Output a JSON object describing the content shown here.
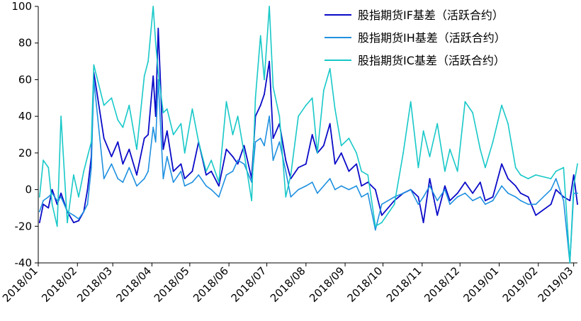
{
  "chart_data": {
    "type": "line",
    "title": "",
    "xlabel": "",
    "ylabel": "",
    "ylim": [
      -40,
      100
    ],
    "yticks": [
      -40,
      -20,
      0,
      20,
      40,
      60,
      80,
      100
    ],
    "xlim": [
      "2018-01-01",
      "2019-03-04"
    ],
    "xticks": [
      {
        "date": "2018-01-01",
        "label": "2018/01"
      },
      {
        "date": "2018-02-01",
        "label": "2018/02"
      },
      {
        "date": "2018-03-01",
        "label": "2018/03"
      },
      {
        "date": "2018-04-01",
        "label": "2018/04"
      },
      {
        "date": "2018-05-01",
        "label": "2018/05"
      },
      {
        "date": "2018-06-01",
        "label": "2018/06"
      },
      {
        "date": "2018-07-01",
        "label": "2018/07"
      },
      {
        "date": "2018-08-01",
        "label": "2018/08"
      },
      {
        "date": "2018-09-01",
        "label": "2018/09"
      },
      {
        "date": "2018-10-01",
        "label": "2018/10"
      },
      {
        "date": "2018-11-01",
        "label": "2018/11"
      },
      {
        "date": "2018-12-01",
        "label": "2018/12"
      },
      {
        "date": "2019-01-01",
        "label": "2019/01"
      },
      {
        "date": "2019-02-01",
        "label": "2019/02"
      },
      {
        "date": "2019-03-01",
        "label": "2019/03"
      }
    ],
    "grid": false,
    "legend_position": "top-right",
    "series": [
      {
        "name": "股指期货IF基差（活跃合约）",
        "color": "#0a0ac8",
        "points": [
          [
            "2018-01-02",
            -18
          ],
          [
            "2018-01-05",
            -8
          ],
          [
            "2018-01-09",
            -10
          ],
          [
            "2018-01-12",
            0
          ],
          [
            "2018-01-16",
            -8
          ],
          [
            "2018-01-19",
            -2
          ],
          [
            "2018-01-24",
            -12
          ],
          [
            "2018-01-29",
            -18
          ],
          [
            "2018-02-02",
            -17
          ],
          [
            "2018-02-06",
            -12
          ],
          [
            "2018-02-09",
            0
          ],
          [
            "2018-02-12",
            18
          ],
          [
            "2018-02-14",
            64
          ],
          [
            "2018-02-22",
            28
          ],
          [
            "2018-02-28",
            18
          ],
          [
            "2018-03-05",
            26
          ],
          [
            "2018-03-09",
            14
          ],
          [
            "2018-03-14",
            22
          ],
          [
            "2018-03-20",
            8
          ],
          [
            "2018-03-26",
            28
          ],
          [
            "2018-03-29",
            30
          ],
          [
            "2018-04-02",
            62
          ],
          [
            "2018-04-04",
            40
          ],
          [
            "2018-04-06",
            88
          ],
          [
            "2018-04-10",
            22
          ],
          [
            "2018-04-13",
            32
          ],
          [
            "2018-04-18",
            10
          ],
          [
            "2018-04-24",
            14
          ],
          [
            "2018-04-27",
            6
          ],
          [
            "2018-05-03",
            10
          ],
          [
            "2018-05-08",
            26
          ],
          [
            "2018-05-14",
            8
          ],
          [
            "2018-05-18",
            10
          ],
          [
            "2018-05-24",
            2
          ],
          [
            "2018-05-30",
            22
          ],
          [
            "2018-06-04",
            18
          ],
          [
            "2018-06-08",
            14
          ],
          [
            "2018-06-13",
            24
          ],
          [
            "2018-06-19",
            6
          ],
          [
            "2018-06-22",
            40
          ],
          [
            "2018-06-26",
            46
          ],
          [
            "2018-06-29",
            52
          ],
          [
            "2018-07-03",
            70
          ],
          [
            "2018-07-06",
            28
          ],
          [
            "2018-07-11",
            36
          ],
          [
            "2018-07-16",
            16
          ],
          [
            "2018-07-20",
            6
          ],
          [
            "2018-07-26",
            12
          ],
          [
            "2018-08-01",
            14
          ],
          [
            "2018-08-06",
            30
          ],
          [
            "2018-08-10",
            20
          ],
          [
            "2018-08-15",
            24
          ],
          [
            "2018-08-20",
            36
          ],
          [
            "2018-08-24",
            14
          ],
          [
            "2018-08-29",
            20
          ],
          [
            "2018-09-04",
            10
          ],
          [
            "2018-09-10",
            14
          ],
          [
            "2018-09-14",
            2
          ],
          [
            "2018-09-19",
            4
          ],
          [
            "2018-09-25",
            0
          ],
          [
            "2018-09-30",
            -14
          ],
          [
            "2018-10-10",
            -6
          ],
          [
            "2018-10-17",
            -2
          ],
          [
            "2018-10-23",
            0
          ],
          [
            "2018-10-29",
            -4
          ],
          [
            "2018-11-02",
            -18
          ],
          [
            "2018-11-07",
            6
          ],
          [
            "2018-11-13",
            -14
          ],
          [
            "2018-11-19",
            2
          ],
          [
            "2018-11-23",
            -6
          ],
          [
            "2018-11-29",
            -2
          ],
          [
            "2018-12-05",
            4
          ],
          [
            "2018-12-11",
            -2
          ],
          [
            "2018-12-17",
            4
          ],
          [
            "2018-12-21",
            -6
          ],
          [
            "2018-12-27",
            -4
          ],
          [
            "2019-01-03",
            14
          ],
          [
            "2019-01-08",
            6
          ],
          [
            "2019-01-14",
            2
          ],
          [
            "2019-01-18",
            -2
          ],
          [
            "2019-01-24",
            -4
          ],
          [
            "2019-01-30",
            -14
          ],
          [
            "2019-02-11",
            -8
          ],
          [
            "2019-02-15",
            0
          ],
          [
            "2019-02-21",
            -4
          ],
          [
            "2019-02-26",
            -6
          ],
          [
            "2019-03-01",
            8
          ],
          [
            "2019-03-04",
            -8
          ]
        ]
      },
      {
        "name": "股指期货IH基差（活跃合约）",
        "color": "#1e90e0",
        "points": [
          [
            "2018-01-02",
            -12
          ],
          [
            "2018-01-05",
            -6
          ],
          [
            "2018-01-09",
            -4
          ],
          [
            "2018-01-12",
            -2
          ],
          [
            "2018-01-16",
            -6
          ],
          [
            "2018-01-19",
            -4
          ],
          [
            "2018-01-24",
            -12
          ],
          [
            "2018-01-29",
            -14
          ],
          [
            "2018-02-02",
            -16
          ],
          [
            "2018-02-06",
            -12
          ],
          [
            "2018-02-09",
            -8
          ],
          [
            "2018-02-12",
            12
          ],
          [
            "2018-02-14",
            60
          ],
          [
            "2018-02-22",
            6
          ],
          [
            "2018-02-28",
            14
          ],
          [
            "2018-03-05",
            6
          ],
          [
            "2018-03-09",
            4
          ],
          [
            "2018-03-14",
            12
          ],
          [
            "2018-03-20",
            2
          ],
          [
            "2018-03-26",
            6
          ],
          [
            "2018-03-29",
            10
          ],
          [
            "2018-04-02",
            34
          ],
          [
            "2018-04-04",
            26
          ],
          [
            "2018-04-06",
            60
          ],
          [
            "2018-04-10",
            6
          ],
          [
            "2018-04-13",
            18
          ],
          [
            "2018-04-18",
            4
          ],
          [
            "2018-04-24",
            10
          ],
          [
            "2018-04-27",
            2
          ],
          [
            "2018-05-03",
            4
          ],
          [
            "2018-05-08",
            8
          ],
          [
            "2018-05-14",
            2
          ],
          [
            "2018-05-18",
            0
          ],
          [
            "2018-05-24",
            -4
          ],
          [
            "2018-05-30",
            8
          ],
          [
            "2018-06-04",
            10
          ],
          [
            "2018-06-08",
            16
          ],
          [
            "2018-06-13",
            14
          ],
          [
            "2018-06-19",
            4
          ],
          [
            "2018-06-22",
            26
          ],
          [
            "2018-06-26",
            28
          ],
          [
            "2018-06-29",
            24
          ],
          [
            "2018-07-03",
            40
          ],
          [
            "2018-07-06",
            16
          ],
          [
            "2018-07-11",
            26
          ],
          [
            "2018-07-16",
            10
          ],
          [
            "2018-07-20",
            -4
          ],
          [
            "2018-07-26",
            0
          ],
          [
            "2018-08-01",
            2
          ],
          [
            "2018-08-06",
            4
          ],
          [
            "2018-08-10",
            -2
          ],
          [
            "2018-08-15",
            2
          ],
          [
            "2018-08-20",
            6
          ],
          [
            "2018-08-24",
            0
          ],
          [
            "2018-08-29",
            2
          ],
          [
            "2018-09-04",
            0
          ],
          [
            "2018-09-10",
            2
          ],
          [
            "2018-09-14",
            -4
          ],
          [
            "2018-09-19",
            -2
          ],
          [
            "2018-09-25",
            -22
          ],
          [
            "2018-09-30",
            -8
          ],
          [
            "2018-10-10",
            -4
          ],
          [
            "2018-10-17",
            -2
          ],
          [
            "2018-10-23",
            0
          ],
          [
            "2018-10-29",
            -8
          ],
          [
            "2018-11-02",
            -4
          ],
          [
            "2018-11-07",
            2
          ],
          [
            "2018-11-13",
            -6
          ],
          [
            "2018-11-19",
            0
          ],
          [
            "2018-11-23",
            -8
          ],
          [
            "2018-11-29",
            -4
          ],
          [
            "2018-12-05",
            -2
          ],
          [
            "2018-12-11",
            -6
          ],
          [
            "2018-12-17",
            -4
          ],
          [
            "2018-12-21",
            -8
          ],
          [
            "2018-12-27",
            -6
          ],
          [
            "2019-01-03",
            2
          ],
          [
            "2019-01-08",
            -2
          ],
          [
            "2019-01-14",
            -4
          ],
          [
            "2019-01-18",
            -6
          ],
          [
            "2019-01-24",
            -8
          ],
          [
            "2019-01-30",
            -8
          ],
          [
            "2019-02-11",
            0
          ],
          [
            "2019-02-15",
            6
          ],
          [
            "2019-02-21",
            -6
          ],
          [
            "2019-02-26",
            -40
          ],
          [
            "2019-03-01",
            -2
          ],
          [
            "2019-03-04",
            -2
          ]
        ]
      },
      {
        "name": "股指期货IC基差（活跃合约）",
        "color": "#18c8c8",
        "points": [
          [
            "2018-01-02",
            -4
          ],
          [
            "2018-01-05",
            16
          ],
          [
            "2018-01-09",
            12
          ],
          [
            "2018-01-12",
            -8
          ],
          [
            "2018-01-16",
            -20
          ],
          [
            "2018-01-19",
            40
          ],
          [
            "2018-01-24",
            -18
          ],
          [
            "2018-01-29",
            8
          ],
          [
            "2018-02-02",
            -4
          ],
          [
            "2018-02-06",
            10
          ],
          [
            "2018-02-09",
            18
          ],
          [
            "2018-02-12",
            26
          ],
          [
            "2018-02-14",
            68
          ],
          [
            "2018-02-22",
            46
          ],
          [
            "2018-02-28",
            50
          ],
          [
            "2018-03-05",
            38
          ],
          [
            "2018-03-09",
            34
          ],
          [
            "2018-03-14",
            46
          ],
          [
            "2018-03-20",
            22
          ],
          [
            "2018-03-26",
            62
          ],
          [
            "2018-03-29",
            70
          ],
          [
            "2018-04-02",
            100
          ],
          [
            "2018-04-04",
            80
          ],
          [
            "2018-04-06",
            64
          ],
          [
            "2018-04-10",
            42
          ],
          [
            "2018-04-13",
            44
          ],
          [
            "2018-04-18",
            30
          ],
          [
            "2018-04-24",
            36
          ],
          [
            "2018-04-27",
            20
          ],
          [
            "2018-05-03",
            44
          ],
          [
            "2018-05-08",
            26
          ],
          [
            "2018-05-14",
            10
          ],
          [
            "2018-05-18",
            16
          ],
          [
            "2018-05-24",
            4
          ],
          [
            "2018-05-30",
            48
          ],
          [
            "2018-06-04",
            30
          ],
          [
            "2018-06-08",
            40
          ],
          [
            "2018-06-13",
            20
          ],
          [
            "2018-06-19",
            -6
          ],
          [
            "2018-06-22",
            50
          ],
          [
            "2018-06-26",
            84
          ],
          [
            "2018-06-29",
            60
          ],
          [
            "2018-07-03",
            100
          ],
          [
            "2018-07-06",
            56
          ],
          [
            "2018-07-11",
            40
          ],
          [
            "2018-07-16",
            -4
          ],
          [
            "2018-07-20",
            8
          ],
          [
            "2018-07-26",
            40
          ],
          [
            "2018-08-01",
            46
          ],
          [
            "2018-08-06",
            50
          ],
          [
            "2018-08-10",
            20
          ],
          [
            "2018-08-15",
            54
          ],
          [
            "2018-08-20",
            66
          ],
          [
            "2018-08-24",
            44
          ],
          [
            "2018-08-29",
            24
          ],
          [
            "2018-09-04",
            28
          ],
          [
            "2018-09-10",
            20
          ],
          [
            "2018-09-14",
            10
          ],
          [
            "2018-09-19",
            8
          ],
          [
            "2018-09-25",
            -20
          ],
          [
            "2018-09-30",
            -18
          ],
          [
            "2018-10-10",
            -8
          ],
          [
            "2018-10-17",
            20
          ],
          [
            "2018-10-23",
            48
          ],
          [
            "2018-10-29",
            12
          ],
          [
            "2018-11-02",
            32
          ],
          [
            "2018-11-07",
            18
          ],
          [
            "2018-11-13",
            36
          ],
          [
            "2018-11-19",
            10
          ],
          [
            "2018-11-23",
            22
          ],
          [
            "2018-11-29",
            10
          ],
          [
            "2018-12-05",
            48
          ],
          [
            "2018-12-11",
            42
          ],
          [
            "2018-12-17",
            22
          ],
          [
            "2018-12-21",
            12
          ],
          [
            "2018-12-27",
            26
          ],
          [
            "2019-01-03",
            46
          ],
          [
            "2019-01-08",
            36
          ],
          [
            "2019-01-14",
            12
          ],
          [
            "2019-01-18",
            8
          ],
          [
            "2019-01-24",
            6
          ],
          [
            "2019-01-30",
            8
          ],
          [
            "2019-02-11",
            6
          ],
          [
            "2019-02-15",
            10
          ],
          [
            "2019-02-21",
            12
          ],
          [
            "2019-02-26",
            -40
          ],
          [
            "2019-03-01",
            2
          ],
          [
            "2019-03-04",
            14
          ]
        ]
      }
    ]
  }
}
